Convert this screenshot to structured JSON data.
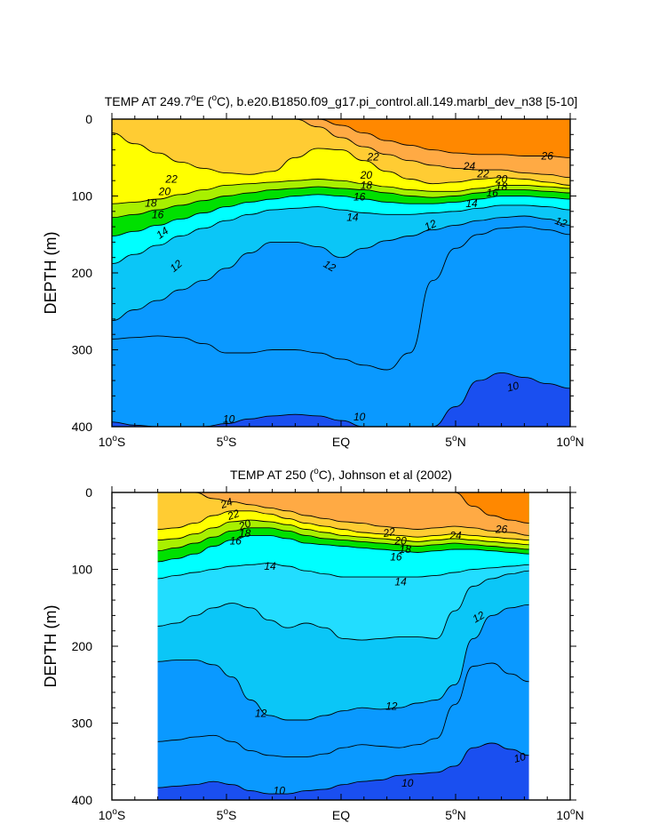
{
  "chart_data": [
    {
      "type": "contour",
      "title_main": "TEMP AT 249.7",
      "title_sup": "o",
      "title_rest": "E (",
      "title_unit_sup": "o",
      "title_end": "C), b.e20.B1850.f09_g17.pi_control.all.149.marbl_dev_n38 [5-10]",
      "ylabel": "DEPTH (m)",
      "xlim": [
        -10,
        10
      ],
      "ylim": [
        0,
        400
      ],
      "x_ticks": [
        {
          "value": -10,
          "num": "10",
          "sup": "o",
          "hemi": "S"
        },
        {
          "value": -5,
          "num": "5",
          "sup": "o",
          "hemi": "S"
        },
        {
          "value": 0,
          "num": "EQ",
          "sup": "",
          "hemi": ""
        },
        {
          "value": 5,
          "num": "5",
          "sup": "o",
          "hemi": "N"
        },
        {
          "value": 10,
          "num": "10",
          "sup": "o",
          "hemi": "N"
        }
      ],
      "y_ticks": [
        {
          "value": 0,
          "label": "0"
        },
        {
          "value": 100,
          "label": "100"
        },
        {
          "value": 200,
          "label": "200"
        },
        {
          "value": 300,
          "label": "300"
        },
        {
          "value": 400,
          "label": "400"
        }
      ],
      "contour_levels": [
        10,
        11,
        12,
        13,
        14,
        15,
        16,
        17,
        18,
        19,
        20,
        21,
        22,
        23,
        24,
        25,
        26
      ],
      "isotherms": [
        {
          "level": 26,
          "depths": [
            null,
            null,
            null,
            null,
            null,
            null,
            null,
            null,
            0,
            0,
            8,
            18,
            28,
            34,
            40,
            44,
            46,
            46,
            48,
            48,
            50
          ]
        },
        {
          "level": 24,
          "depths": [
            null,
            null,
            null,
            null,
            null,
            null,
            null,
            0,
            0,
            10,
            24,
            36,
            46,
            54,
            60,
            64,
            66,
            66,
            70,
            72,
            76
          ]
        },
        {
          "level": 22,
          "depths": [
            18,
            32,
            44,
            56,
            64,
            70,
            72,
            68,
            50,
            38,
            40,
            54,
            68,
            78,
            84,
            82,
            78,
            76,
            78,
            82,
            86
          ]
        },
        {
          "level": 20,
          "depths": [
            110,
            108,
            104,
            98,
            92,
            86,
            84,
            82,
            80,
            78,
            80,
            84,
            88,
            92,
            94,
            94,
            90,
            86,
            86,
            88,
            90
          ]
        },
        {
          "level": 18,
          "depths": [
            128,
            124,
            118,
            112,
            106,
            100,
            96,
            92,
            90,
            88,
            90,
            92,
            96,
            100,
            102,
            100,
            96,
            92,
            92,
            94,
            96
          ]
        },
        {
          "level": 16,
          "depths": [
            152,
            146,
            138,
            130,
            122,
            114,
            108,
            104,
            100,
            98,
            100,
            104,
            108,
            110,
            110,
            108,
            104,
            100,
            100,
            102,
            104
          ]
        },
        {
          "level": 14,
          "depths": [
            188,
            176,
            164,
            152,
            142,
            132,
            124,
            118,
            116,
            114,
            118,
            122,
            124,
            124,
            122,
            120,
            116,
            112,
            112,
            114,
            118
          ]
        },
        {
          "level": 12,
          "depths": [
            262,
            248,
            236,
            222,
            210,
            194,
            174,
            160,
            160,
            166,
            180,
            168,
            158,
            152,
            144,
            138,
            132,
            128,
            126,
            130,
            138
          ]
        },
        {
          "level": 11,
          "depths": [
            286,
            284,
            282,
            284,
            292,
            304,
            304,
            300,
            300,
            304,
            312,
            320,
            326,
            304,
            210,
            168,
            150,
            142,
            140,
            144,
            150
          ]
        },
        {
          "level": 10,
          "depths": [
            394,
            398,
            400,
            400,
            400,
            396,
            390,
            386,
            384,
            386,
            392,
            400,
            400,
            400,
            400,
            374,
            340,
            330,
            336,
            344,
            350
          ]
        }
      ],
      "labels": [
        {
          "text": "22",
          "x": -7.4,
          "y": 78,
          "rot": 0
        },
        {
          "text": "20",
          "x": -7.7,
          "y": 94,
          "rot": 0
        },
        {
          "text": "18",
          "x": -8.3,
          "y": 109,
          "rot": 0
        },
        {
          "text": "16",
          "x": -8.0,
          "y": 124,
          "rot": 0
        },
        {
          "text": "14",
          "x": -7.8,
          "y": 148,
          "rot": -35
        },
        {
          "text": "12",
          "x": -7.2,
          "y": 191,
          "rot": -40
        },
        {
          "text": "10",
          "x": -4.9,
          "y": 390,
          "rot": 0
        },
        {
          "text": "22",
          "x": 1.4,
          "y": 49,
          "rot": 0
        },
        {
          "text": "20",
          "x": 1.1,
          "y": 73,
          "rot": 0
        },
        {
          "text": "18",
          "x": 1.1,
          "y": 86,
          "rot": 0
        },
        {
          "text": "16",
          "x": 0.8,
          "y": 101,
          "rot": 0
        },
        {
          "text": "14",
          "x": 0.5,
          "y": 128,
          "rot": 0
        },
        {
          "text": "12",
          "x": -0.5,
          "y": 191,
          "rot": 30
        },
        {
          "text": "10",
          "x": 0.8,
          "y": 387,
          "rot": 0
        },
        {
          "text": "12",
          "x": 3.9,
          "y": 138,
          "rot": -25
        },
        {
          "text": "26",
          "x": 9.0,
          "y": 48,
          "rot": 0
        },
        {
          "text": "24",
          "x": 5.6,
          "y": 61,
          "rot": 0
        },
        {
          "text": "22",
          "x": 6.2,
          "y": 71,
          "rot": 0
        },
        {
          "text": "20",
          "x": 7.0,
          "y": 78,
          "rot": 0
        },
        {
          "text": "18",
          "x": 7.0,
          "y": 88,
          "rot": 0
        },
        {
          "text": "16",
          "x": 6.6,
          "y": 96,
          "rot": 0
        },
        {
          "text": "14",
          "x": 5.7,
          "y": 110,
          "rot": 0
        },
        {
          "text": "12",
          "x": 9.6,
          "y": 134,
          "rot": 20
        },
        {
          "text": "10",
          "x": 7.5,
          "y": 348,
          "rot": -15
        }
      ]
    },
    {
      "type": "contour",
      "title_main": "TEMP AT 250 (",
      "title_sup": "o",
      "title_rest": "C), Johnson et al (2002)",
      "ylabel": "DEPTH (m)",
      "xlim": [
        -10,
        10
      ],
      "ylim": [
        0,
        400
      ],
      "data_xlim": [
        -8.0,
        8.2
      ],
      "x_ticks": [
        {
          "value": -10,
          "num": "10",
          "sup": "o",
          "hemi": "S"
        },
        {
          "value": -5,
          "num": "5",
          "sup": "o",
          "hemi": "S"
        },
        {
          "value": 0,
          "num": "EQ",
          "sup": "",
          "hemi": ""
        },
        {
          "value": 5,
          "num": "5",
          "sup": "o",
          "hemi": "N"
        },
        {
          "value": 10,
          "num": "10",
          "sup": "o",
          "hemi": "N"
        }
      ],
      "y_ticks": [
        {
          "value": 0,
          "label": "0"
        },
        {
          "value": 100,
          "label": "100"
        },
        {
          "value": 200,
          "label": "200"
        },
        {
          "value": 300,
          "label": "300"
        },
        {
          "value": 400,
          "label": "400"
        }
      ],
      "contour_levels": [
        10,
        11,
        12,
        13,
        14,
        15,
        16,
        17,
        18,
        19,
        20,
        21,
        22,
        23,
        24,
        25,
        26
      ],
      "isotherms": [
        {
          "level": 26,
          "depths": [
            null,
            null,
            null,
            null,
            null,
            null,
            null,
            null,
            null,
            null,
            null,
            null,
            null,
            null,
            null,
            null,
            0,
            18,
            30,
            36,
            40
          ]
        },
        {
          "level": 24,
          "depths": [
            null,
            null,
            0,
            8,
            12,
            16,
            20,
            24,
            30,
            34,
            38,
            40,
            44,
            46,
            48,
            46,
            44,
            46,
            50,
            52,
            56
          ]
        },
        {
          "level": 22,
          "depths": [
            48,
            46,
            40,
            30,
            24,
            24,
            28,
            34,
            40,
            44,
            48,
            52,
            54,
            56,
            58,
            56,
            54,
            56,
            58,
            60,
            62
          ]
        },
        {
          "level": 20,
          "depths": [
            62,
            60,
            54,
            46,
            38,
            36,
            38,
            42,
            48,
            52,
            56,
            58,
            60,
            62,
            64,
            62,
            60,
            62,
            64,
            66,
            68
          ]
        },
        {
          "level": 18,
          "depths": [
            76,
            72,
            66,
            58,
            50,
            46,
            46,
            50,
            56,
            60,
            62,
            64,
            66,
            68,
            70,
            68,
            66,
            68,
            70,
            72,
            74
          ]
        },
        {
          "level": 16,
          "depths": [
            90,
            86,
            80,
            70,
            62,
            56,
            56,
            60,
            66,
            68,
            70,
            72,
            74,
            76,
            78,
            76,
            74,
            74,
            76,
            78,
            80
          ]
        },
        {
          "level": 14,
          "depths": [
            112,
            108,
            104,
            100,
            96,
            94,
            92,
            96,
            102,
            106,
            110,
            110,
            110,
            110,
            110,
            108,
            104,
            100,
            98,
            96,
            94
          ]
        },
        {
          "level": 13,
          "depths": [
            174,
            170,
            160,
            150,
            144,
            150,
            166,
            176,
            170,
            176,
            190,
            192,
            190,
            188,
            188,
            190,
            154,
            122,
            112,
            106,
            102
          ]
        },
        {
          "level": 12,
          "depths": [
            220,
            218,
            218,
            224,
            240,
            270,
            290,
            296,
            296,
            290,
            284,
            280,
            282,
            280,
            274,
            270,
            250,
            190,
            160,
            150,
            146
          ]
        },
        {
          "level": 11,
          "depths": [
            324,
            322,
            318,
            316,
            324,
            336,
            342,
            344,
            344,
            340,
            332,
            328,
            330,
            332,
            328,
            320,
            276,
            226,
            222,
            236,
            246
          ]
        },
        {
          "level": 10,
          "depths": [
            384,
            382,
            380,
            376,
            380,
            388,
            392,
            392,
            388,
            386,
            380,
            376,
            374,
            368,
            366,
            364,
            356,
            332,
            326,
            334,
            342
          ]
        }
      ],
      "labels": [
        {
          "text": "24",
          "x": -5.0,
          "y": 14,
          "rot": -20
        },
        {
          "text": "22",
          "x": -4.7,
          "y": 29,
          "rot": -20
        },
        {
          "text": "20",
          "x": -4.2,
          "y": 42,
          "rot": -20
        },
        {
          "text": "18",
          "x": -4.2,
          "y": 53,
          "rot": 0
        },
        {
          "text": "16",
          "x": -4.6,
          "y": 63,
          "rot": 0
        },
        {
          "text": "14",
          "x": -3.1,
          "y": 96,
          "rot": 0
        },
        {
          "text": "12",
          "x": -3.5,
          "y": 287,
          "rot": 0
        },
        {
          "text": "10",
          "x": -2.7,
          "y": 388,
          "rot": 0
        },
        {
          "text": "22",
          "x": 2.1,
          "y": 52,
          "rot": -10
        },
        {
          "text": "20",
          "x": 2.6,
          "y": 63,
          "rot": 0
        },
        {
          "text": "18",
          "x": 2.8,
          "y": 74,
          "rot": 0
        },
        {
          "text": "16",
          "x": 2.4,
          "y": 84,
          "rot": 0
        },
        {
          "text": "14",
          "x": 2.6,
          "y": 116,
          "rot": 0
        },
        {
          "text": "12",
          "x": 2.2,
          "y": 278,
          "rot": 0
        },
        {
          "text": "10",
          "x": 2.9,
          "y": 378,
          "rot": 0
        },
        {
          "text": "24",
          "x": 5.0,
          "y": 56,
          "rot": 0
        },
        {
          "text": "26",
          "x": 7.0,
          "y": 48,
          "rot": 0
        },
        {
          "text": "12",
          "x": 6.0,
          "y": 162,
          "rot": -30
        },
        {
          "text": "10",
          "x": 7.8,
          "y": 345,
          "rot": -15
        }
      ]
    }
  ]
}
